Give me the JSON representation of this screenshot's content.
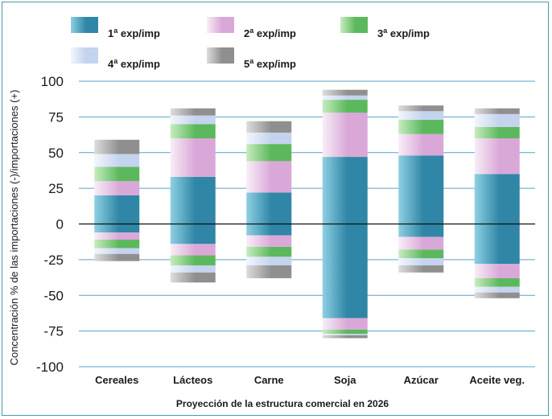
{
  "chart_data": {
    "type": "bar",
    "stacked": "diverging",
    "xlabel": "Proyección de la estructura comercial en 2026",
    "ylabel": "Concentración % de las importaciones (-)/importaciones (+)",
    "ylim": [
      -100,
      100
    ],
    "yticks": [
      100,
      75,
      50,
      25,
      0,
      -25,
      -50,
      -75,
      -100
    ],
    "ytick_labels": [
      "100",
      "75",
      "50",
      "25",
      "0",
      "-25",
      "-50",
      "-75",
      "-100"
    ],
    "grid": true,
    "legend_position": "top",
    "categories": [
      "Cereales",
      "Lácteos",
      "Carne",
      "Soja",
      "Azúcar",
      "Aceite veg."
    ],
    "series": [
      {
        "name": "1ª exp/imp",
        "label_main": "1",
        "label_sup": "a",
        "label_rest": " exp/imp",
        "color": "#2f86a6",
        "color_light": "#8ed0e3",
        "positive": [
          20,
          33,
          22,
          47,
          48,
          35
        ],
        "negative": [
          -6,
          -14,
          -8,
          -66,
          -9,
          -28
        ]
      },
      {
        "name": "2ª exp/imp",
        "label_main": "2",
        "label_sup": "a",
        "label_rest": " exp/imp",
        "color": "#d9a8d8",
        "color_light": "#f8eef7",
        "positive": [
          10,
          27,
          22,
          31,
          15,
          25
        ],
        "negative": [
          -5,
          -8,
          -8,
          -8,
          -9,
          -10
        ]
      },
      {
        "name": "3ª exp/imp",
        "label_main": "3",
        "label_sup": "a",
        "label_rest": " exp/imp",
        "color": "#5cb85c",
        "color_light": "#c7ecc0",
        "positive": [
          10,
          10,
          12,
          9,
          10,
          8
        ],
        "negative": [
          -6,
          -7,
          -7,
          -3,
          -6,
          -6
        ]
      },
      {
        "name": "4ª exp/imp",
        "label_main": "4",
        "label_sup": "a",
        "label_rest": " exp/imp",
        "color": "#c4d3ee",
        "color_light": "#f2f6fd",
        "positive": [
          9,
          6,
          8,
          3,
          6,
          9
        ],
        "negative": [
          -4,
          -5,
          -6,
          -1,
          -5,
          -4
        ]
      },
      {
        "name": "5ª exp/imp",
        "label_main": "5",
        "label_sup": "a",
        "label_rest": " exp/imp",
        "color": "#8f8f8f",
        "color_light": "#dddddd",
        "positive": [
          10,
          5,
          8,
          4,
          4,
          4
        ],
        "negative": [
          -5,
          -7,
          -9,
          -2,
          -5,
          -4
        ]
      }
    ]
  }
}
